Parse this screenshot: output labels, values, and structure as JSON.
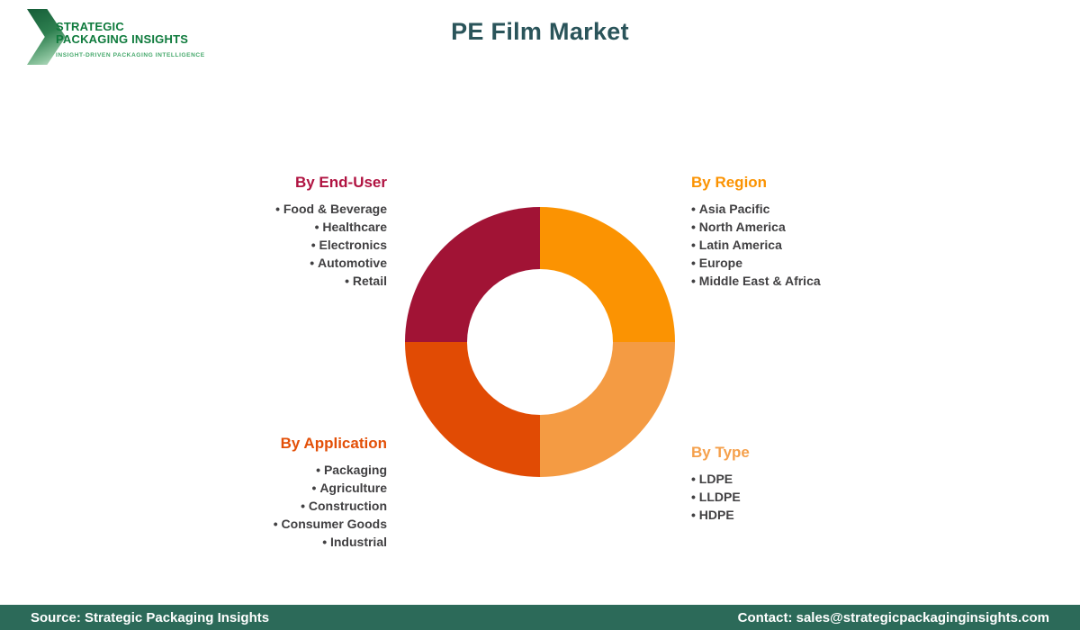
{
  "logo": {
    "line1": "STRATEGIC",
    "line2": "PACKAGING INSIGHTS",
    "tagline": "INSIGHT-DRIVEN PACKAGING INTELLIGENCE",
    "brand_green": "#0e7a3c"
  },
  "header": {
    "title": "PE Film Market",
    "title_color": "#2a545a"
  },
  "chart_data": {
    "type": "pie",
    "title": "PE Film Market segmentation donut",
    "donut_hole_ratio": 0.54,
    "legend_position": "corner text blocks around donut",
    "categories": [
      "By Region",
      "By Type",
      "By Application",
      "By End-User"
    ],
    "values": [
      25,
      25,
      25,
      25
    ],
    "slices": [
      {
        "label": "By Region",
        "value": 25,
        "color": "#fb9302",
        "position": "top-right"
      },
      {
        "label": "By Type",
        "value": 25,
        "color": "#f49b43",
        "position": "bottom-right"
      },
      {
        "label": "By Application",
        "value": 25,
        "color": "#e14b04",
        "position": "bottom-left"
      },
      {
        "label": "By End-User",
        "value": 25,
        "color": "#a11335",
        "position": "top-left"
      }
    ]
  },
  "segments": {
    "end_user": {
      "heading": "By End-User",
      "heading_color": "#b01341",
      "items": [
        "Food & Beverage",
        "Healthcare",
        "Electronics",
        "Automotive",
        "Retail"
      ]
    },
    "region": {
      "heading": "By Region",
      "heading_color": "#fb9302",
      "items": [
        "Asia Pacific",
        "North America",
        "Latin America",
        "Europe",
        "Middle East & Africa"
      ]
    },
    "application": {
      "heading": "By Application",
      "heading_color": "#e35008",
      "items": [
        "Packaging",
        "Agriculture",
        "Construction",
        "Consumer Goods",
        "Industrial"
      ]
    },
    "type": {
      "heading": "By Type",
      "heading_color": "#f5a04b",
      "items": [
        "LDPE",
        "LLDPE",
        "HDPE"
      ]
    }
  },
  "footer": {
    "source": "Source: Strategic Packaging Insights",
    "contact": "Contact: sales@strategicpackaginginsights.com",
    "bar_color": "#2c6a59"
  }
}
